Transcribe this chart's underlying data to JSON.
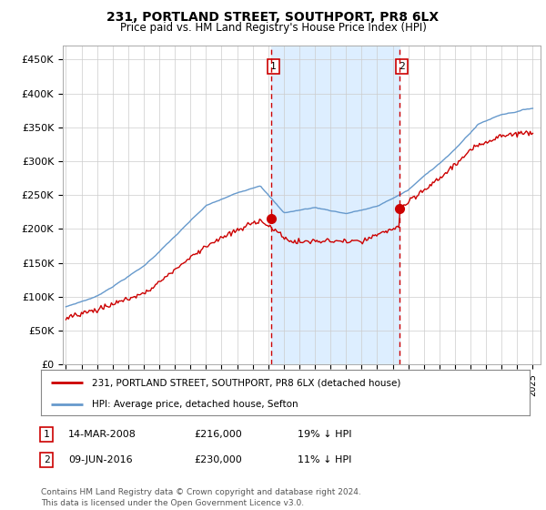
{
  "title": "231, PORTLAND STREET, SOUTHPORT, PR8 6LX",
  "subtitle": "Price paid vs. HM Land Registry's House Price Index (HPI)",
  "ylabel_ticks": [
    "£0",
    "£50K",
    "£100K",
    "£150K",
    "£200K",
    "£250K",
    "£300K",
    "£350K",
    "£400K",
    "£450K"
  ],
  "ytick_values": [
    0,
    50000,
    100000,
    150000,
    200000,
    250000,
    300000,
    350000,
    400000,
    450000
  ],
  "ylim": [
    0,
    470000
  ],
  "xlim_start": 1994.8,
  "xlim_end": 2025.5,
  "vline1_x": 2008.19,
  "vline2_x": 2016.44,
  "marker1_x": 2008.19,
  "marker1_y": 216000,
  "marker2_x": 2016.44,
  "marker2_y": 230000,
  "sale_color": "#cc0000",
  "hpi_color": "#6699cc",
  "vline_color": "#cc0000",
  "bg_color": "#ffffff",
  "shade_color": "#ddeeff",
  "grid_color": "#cccccc",
  "legend_label1": "231, PORTLAND STREET, SOUTHPORT, PR8 6LX (detached house)",
  "legend_label2": "HPI: Average price, detached house, Sefton",
  "table_row1": [
    "1",
    "14-MAR-2008",
    "£216,000",
    "19% ↓ HPI"
  ],
  "table_row2": [
    "2",
    "09-JUN-2016",
    "£230,000",
    "11% ↓ HPI"
  ],
  "footer": "Contains HM Land Registry data © Crown copyright and database right 2024.\nThis data is licensed under the Open Government Licence v3.0.",
  "xtick_years": [
    1995,
    1996,
    1997,
    1998,
    1999,
    2000,
    2001,
    2002,
    2003,
    2004,
    2005,
    2006,
    2007,
    2008,
    2009,
    2010,
    2011,
    2012,
    2013,
    2014,
    2015,
    2016,
    2017,
    2018,
    2019,
    2020,
    2021,
    2022,
    2023,
    2024,
    2025
  ]
}
